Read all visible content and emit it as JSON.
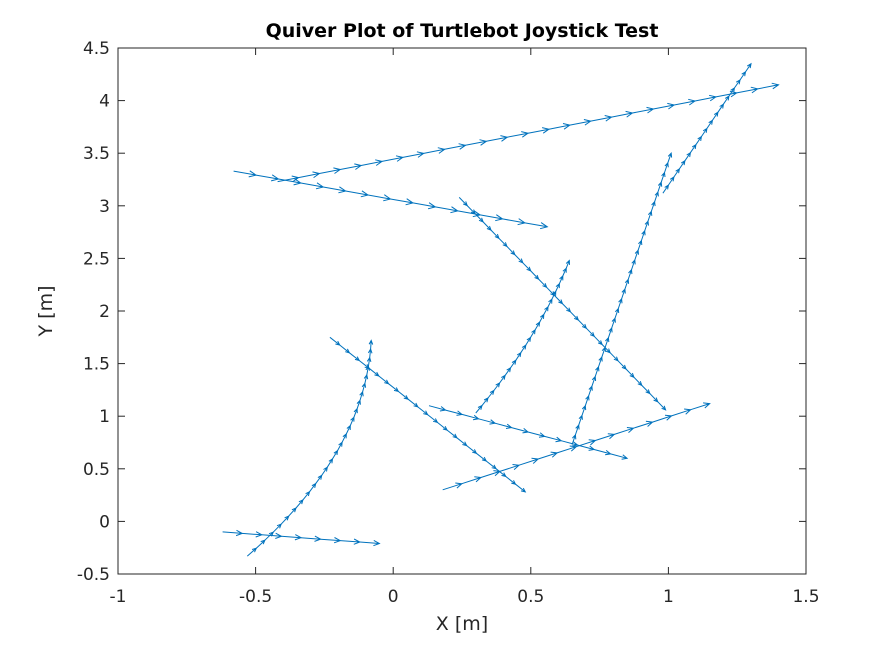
{
  "chart_data": {
    "type": "quiver",
    "title": "Quiver Plot of Turtlebot Joystick Test",
    "xlabel": "X [m]",
    "ylabel": "Y [m]",
    "xlim": [
      -1,
      1.5
    ],
    "ylim": [
      -0.5,
      4.5
    ],
    "xticks": [
      -1,
      -0.5,
      0,
      0.5,
      1,
      1.5
    ],
    "xtick_labels": [
      "-1",
      "-0.5",
      "0",
      "0.5",
      "1",
      "1.5"
    ],
    "yticks": [
      -0.5,
      0,
      0.5,
      1,
      1.5,
      2,
      2.5,
      3,
      3.5,
      4,
      4.5
    ],
    "ytick_labels": [
      "-0.5",
      "0",
      "0.5",
      "1",
      "1.5",
      "2",
      "2.5",
      "3",
      "3.5",
      "4",
      "4.5"
    ],
    "grid": false,
    "series_color": "#0072BD",
    "path_segments": [
      {
        "from": [
          -0.62,
          -0.1
        ],
        "to": [
          -0.05,
          -0.21
        ],
        "n_arrows": 8
      },
      {
        "from": [
          -0.53,
          -0.33
        ],
        "to": [
          -0.08,
          1.72
        ],
        "n_arrows": 26,
        "bend": -0.05
      },
      {
        "from": [
          -0.23,
          1.75
        ],
        "to": [
          0.48,
          0.28
        ],
        "n_arrows": 20
      },
      {
        "from": [
          0.13,
          1.1
        ],
        "to": [
          0.85,
          0.6
        ],
        "n_arrows": 12
      },
      {
        "from": [
          0.3,
          1.03
        ],
        "to": [
          0.64,
          2.48
        ],
        "n_arrows": 20,
        "bend": -0.02
      },
      {
        "from": [
          0.24,
          3.08
        ],
        "to": [
          0.99,
          1.06
        ],
        "n_arrows": 26
      },
      {
        "from": [
          0.65,
          0.73
        ],
        "to": [
          1.01,
          3.5
        ],
        "n_arrows": 30
      },
      {
        "from": [
          0.98,
          3.12
        ],
        "to": [
          1.3,
          4.35
        ],
        "n_arrows": 16
      },
      {
        "from": [
          0.18,
          0.3
        ],
        "to": [
          1.15,
          1.12
        ],
        "n_arrows": 14
      },
      {
        "from": [
          -0.42,
          3.23
        ],
        "to": [
          1.4,
          4.15
        ],
        "n_arrows": 24
      },
      {
        "from": [
          -0.58,
          3.33
        ],
        "to": [
          0.56,
          2.8
        ],
        "n_arrows": 14
      }
    ]
  }
}
